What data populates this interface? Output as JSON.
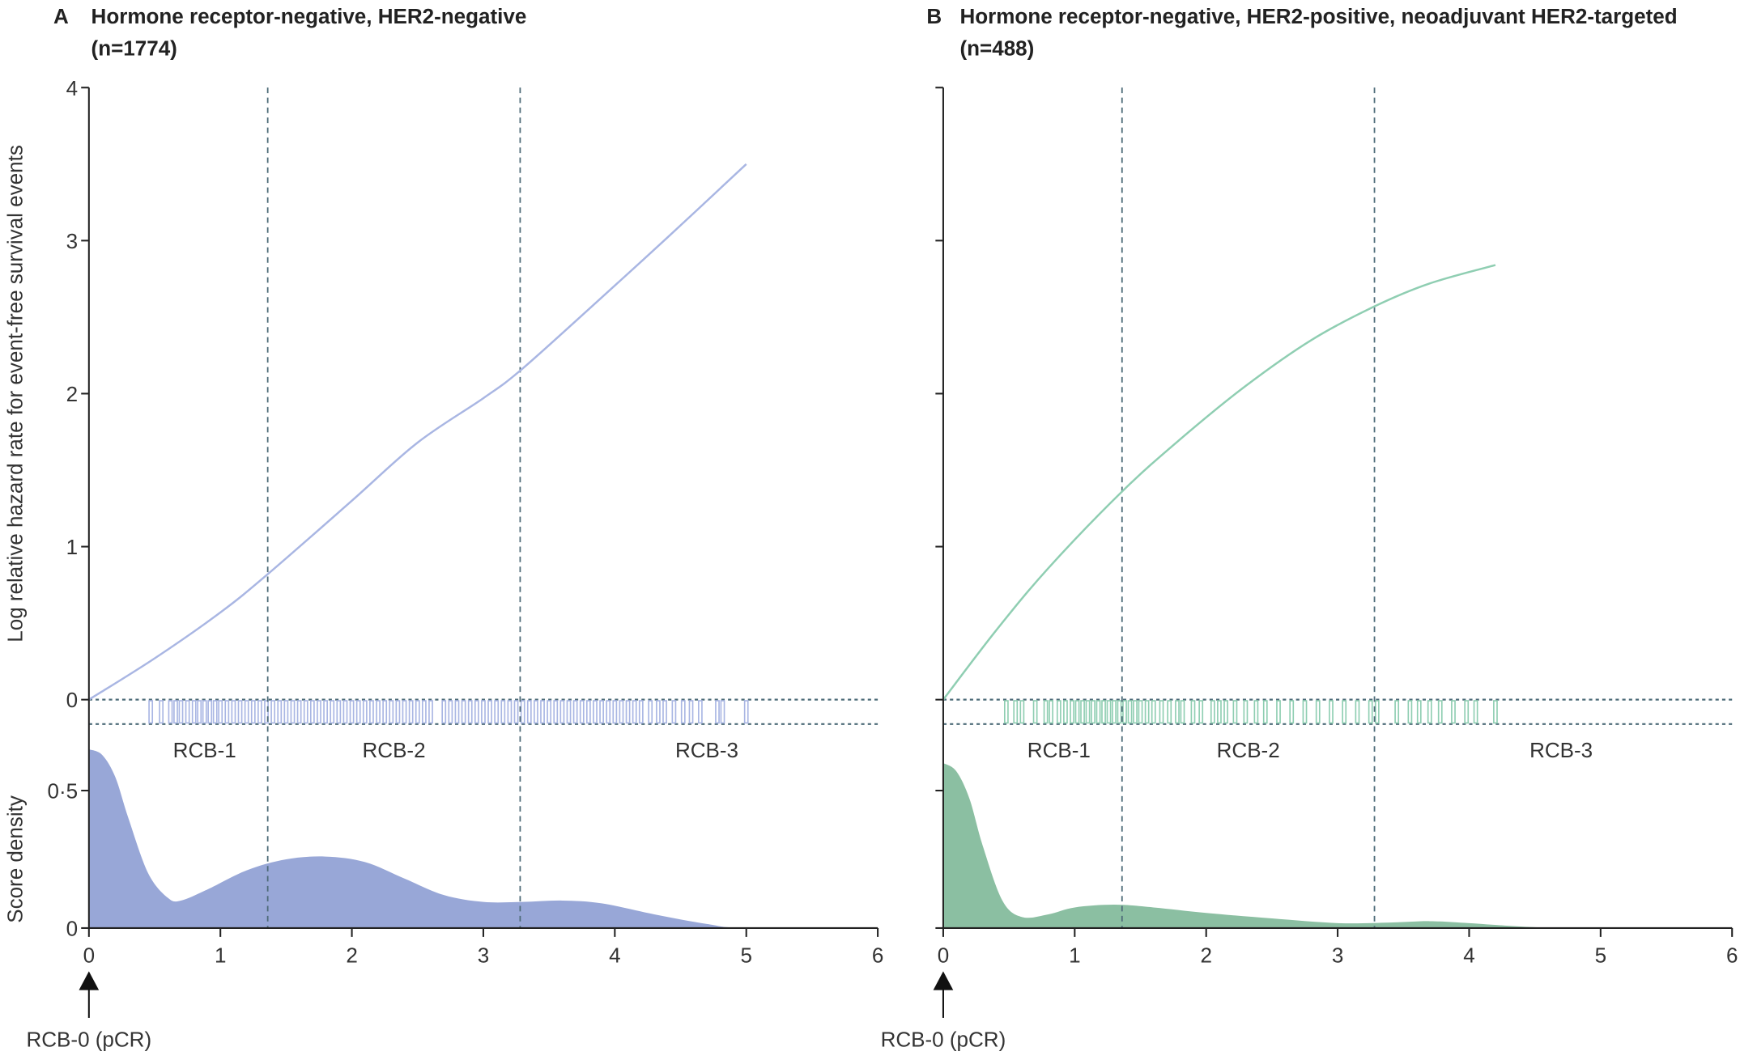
{
  "chart_data": [
    {
      "type": "line",
      "panel_letter": "A",
      "title": "Hormone receptor-negative, HER2-negative",
      "subtitle": "(n=1774)",
      "ylabel": "Log relative hazard rate for event-free survival events",
      "ylabel2": "Score density",
      "xticks": [
        "0",
        "1",
        "2",
        "3",
        "4",
        "5",
        "6"
      ],
      "yticks": [
        "0",
        "1",
        "2",
        "3",
        "4"
      ],
      "density_ticks": [
        "0",
        "0·5"
      ],
      "xlim": [
        0,
        6
      ],
      "ylim": [
        0,
        4
      ],
      "density_ylim": [
        0,
        0.6
      ],
      "cutoffs": [
        1.36,
        3.28
      ],
      "class_labels": [
        "RCB-1",
        "RCB-2",
        "RCB-3"
      ],
      "arrow_label": "RCB-0 (pCR)",
      "line_color": "#a9b6e3",
      "fill_color": "#98a7d7",
      "hazard": [
        [
          0,
          0
        ],
        [
          0.5,
          0.27
        ],
        [
          1,
          0.57
        ],
        [
          1.36,
          0.82
        ],
        [
          2,
          1.3
        ],
        [
          2.5,
          1.68
        ],
        [
          3,
          1.97
        ],
        [
          3.28,
          2.15
        ],
        [
          3.8,
          2.55
        ],
        [
          4.4,
          3.02
        ],
        [
          5,
          3.5
        ]
      ],
      "density": [
        [
          0,
          0.65
        ],
        [
          0.1,
          0.63
        ],
        [
          0.2,
          0.55
        ],
        [
          0.3,
          0.4
        ],
        [
          0.45,
          0.2
        ],
        [
          0.6,
          0.11
        ],
        [
          0.7,
          0.1
        ],
        [
          0.9,
          0.14
        ],
        [
          1.2,
          0.21
        ],
        [
          1.5,
          0.25
        ],
        [
          1.8,
          0.26
        ],
        [
          2.1,
          0.24
        ],
        [
          2.4,
          0.18
        ],
        [
          2.7,
          0.12
        ],
        [
          3,
          0.095
        ],
        [
          3.3,
          0.095
        ],
        [
          3.6,
          0.1
        ],
        [
          3.9,
          0.09
        ],
        [
          4.3,
          0.05
        ],
        [
          4.7,
          0.015
        ],
        [
          5,
          0.0
        ],
        [
          6,
          0
        ]
      ],
      "rug": [
        0.47,
        0.55,
        0.62,
        0.66,
        0.7,
        0.75,
        0.8,
        0.84,
        0.88,
        0.92,
        0.96,
        1.0,
        1.05,
        1.1,
        1.15,
        1.2,
        1.25,
        1.3,
        1.35,
        1.4,
        1.45,
        1.5,
        1.55,
        1.6,
        1.65,
        1.7,
        1.75,
        1.8,
        1.85,
        1.9,
        1.95,
        2.0,
        2.05,
        2.1,
        2.15,
        2.2,
        2.25,
        2.3,
        2.35,
        2.4,
        2.45,
        2.5,
        2.55,
        2.6,
        2.7,
        2.75,
        2.8,
        2.85,
        2.9,
        2.95,
        3.0,
        3.05,
        3.1,
        3.15,
        3.2,
        3.25,
        3.3,
        3.35,
        3.4,
        3.45,
        3.5,
        3.55,
        3.6,
        3.65,
        3.7,
        3.75,
        3.8,
        3.85,
        3.9,
        3.95,
        4.0,
        4.05,
        4.1,
        4.15,
        4.2,
        4.27,
        4.33,
        4.38,
        4.45,
        4.52,
        4.58,
        4.65,
        4.78,
        4.82,
        5.0
      ]
    },
    {
      "type": "line",
      "panel_letter": "B",
      "title": "Hormone receptor-negative, HER2-positive, neoadjuvant HER2-targeted",
      "subtitle": "(n=488)",
      "xticks": [
        "0",
        "1",
        "2",
        "3",
        "4",
        "5",
        "6"
      ],
      "xlim": [
        0,
        6
      ],
      "ylim": [
        0,
        4
      ],
      "density_ylim": [
        0,
        0.6
      ],
      "cutoffs": [
        1.36,
        3.28
      ],
      "class_labels": [
        "RCB-1",
        "RCB-2",
        "RCB-3"
      ],
      "arrow_label": "RCB-0 (pCR)",
      "line_color": "#8fceb2",
      "fill_color": "#8bbfa2",
      "hazard": [
        [
          0,
          0
        ],
        [
          0.4,
          0.45
        ],
        [
          0.8,
          0.86
        ],
        [
          1.36,
          1.36
        ],
        [
          1.8,
          1.7
        ],
        [
          2.3,
          2.05
        ],
        [
          2.8,
          2.35
        ],
        [
          3.28,
          2.57
        ],
        [
          3.7,
          2.72
        ],
        [
          4.2,
          2.84
        ]
      ],
      "density": [
        [
          0,
          0.6
        ],
        [
          0.1,
          0.57
        ],
        [
          0.2,
          0.47
        ],
        [
          0.3,
          0.3
        ],
        [
          0.45,
          0.1
        ],
        [
          0.6,
          0.04
        ],
        [
          0.8,
          0.05
        ],
        [
          1.0,
          0.075
        ],
        [
          1.3,
          0.085
        ],
        [
          1.6,
          0.075
        ],
        [
          2.0,
          0.055
        ],
        [
          2.5,
          0.035
        ],
        [
          3.0,
          0.018
        ],
        [
          3.4,
          0.02
        ],
        [
          3.7,
          0.025
        ],
        [
          4.0,
          0.018
        ],
        [
          4.5,
          0.003
        ],
        [
          5,
          0
        ],
        [
          6,
          0
        ]
      ],
      "rug": [
        0.48,
        0.55,
        0.6,
        0.7,
        0.78,
        0.82,
        0.88,
        0.93,
        0.98,
        1.02,
        1.06,
        1.1,
        1.14,
        1.18,
        1.22,
        1.26,
        1.3,
        1.34,
        1.38,
        1.42,
        1.46,
        1.5,
        1.55,
        1.6,
        1.66,
        1.72,
        1.78,
        1.82,
        1.9,
        1.96,
        2.05,
        2.1,
        2.15,
        2.22,
        2.3,
        2.38,
        2.45,
        2.55,
        2.65,
        2.75,
        2.85,
        2.95,
        3.05,
        3.15,
        3.25,
        3.3,
        3.45,
        3.55,
        3.62,
        3.7,
        3.78,
        3.88,
        3.98,
        4.05,
        4.2
      ]
    }
  ]
}
